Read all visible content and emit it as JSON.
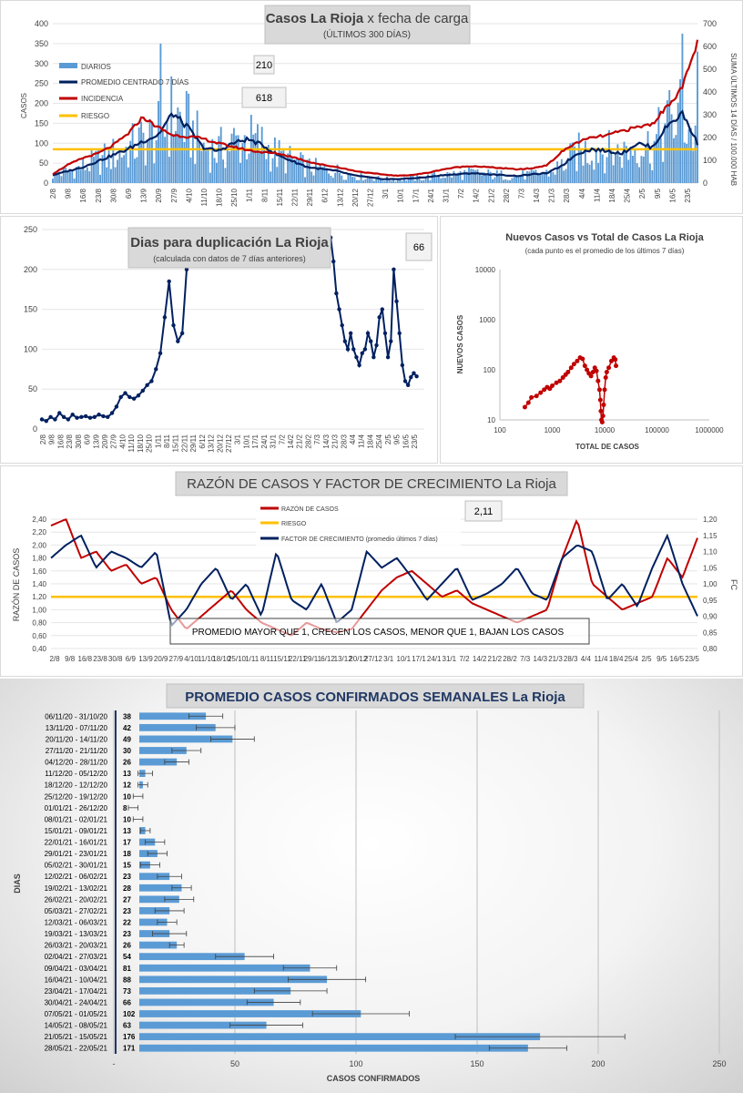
{
  "chart_data": [
    {
      "id": "casos",
      "type": "bar+line",
      "title_bold": "Casos La Rioja",
      "title_rest": "x fecha de carga",
      "subtitle": "(ÚLTIMOS 300 DÍAS)",
      "ylabel": "CASOS",
      "y2label": "SUMA ÚLTIMOS 14 DÍAS / 100.000 HAB",
      "ylim": [
        0,
        400
      ],
      "y2lim": [
        0,
        700
      ],
      "yticks": [
        "0",
        "50",
        "100",
        "150",
        "200",
        "250",
        "300",
        "350",
        "400"
      ],
      "y2ticks": [
        "0",
        "100",
        "200",
        "300",
        "400",
        "500",
        "600",
        "700"
      ],
      "xticks": [
        "2/8",
        "9/8",
        "16/8",
        "23/8",
        "30/8",
        "6/9",
        "13/9",
        "20/9",
        "27/9",
        "4/10",
        "11/10",
        "18/10",
        "25/10",
        "1/11",
        "8/11",
        "15/11",
        "22/11",
        "29/11",
        "6/12",
        "13/12",
        "20/12",
        "27/12",
        "3/1",
        "10/1",
        "17/1",
        "24/1",
        "31/1",
        "7/2",
        "14/2",
        "21/2",
        "28/2",
        "7/3",
        "14/3",
        "21/3",
        "28/3",
        "4/4",
        "11/4",
        "18/4",
        "25/4",
        "2/5",
        "9/5",
        "16/5",
        "23/5"
      ],
      "legend": [
        "DIARIOS",
        "PROMEDIO CENTRADO 7 DÍAS",
        "INCIDENCIA",
        "RIESGO"
      ],
      "annotation_diarios": "210",
      "annotation_incidencia": "618",
      "riesgo": 85,
      "colors": {
        "diarios": "#5b9bd5",
        "promedio": "#002060",
        "incidencia": "#c00000",
        "riesgo": "#ffc000"
      },
      "promedio_weekly": [
        20,
        30,
        40,
        55,
        70,
        85,
        105,
        120,
        175,
        140,
        90,
        80,
        100,
        110,
        95,
        70,
        55,
        40,
        35,
        30,
        20,
        15,
        10,
        10,
        12,
        15,
        20,
        22,
        25,
        22,
        20,
        18,
        22,
        25,
        45,
        75,
        85,
        80,
        75,
        100,
        90,
        145,
        175,
        100
      ],
      "incidencia_weekly": [
        40,
        80,
        110,
        130,
        165,
        215,
        290,
        245,
        210,
        205,
        195,
        175,
        160,
        145,
        135,
        130,
        115,
        95,
        80,
        70,
        55,
        45,
        38,
        32,
        36,
        45,
        60,
        70,
        75,
        70,
        65,
        60,
        65,
        80,
        140,
        180,
        200,
        210,
        230,
        245,
        260,
        340,
        420,
        618
      ],
      "diarios_peaks": [
        {
          "x": "20/9",
          "y": 350
        },
        {
          "x": "16/5",
          "y": 375
        },
        {
          "x": "23/5",
          "y": 330
        }
      ]
    },
    {
      "id": "duplicacion",
      "type": "line",
      "title": "Dias para duplicación La Rioja",
      "subtitle": "(calculada con datos de 7 días anteriores)",
      "annotation": "66",
      "ylim": [
        0,
        250
      ],
      "yticks": [
        "0",
        "50",
        "100",
        "150",
        "200",
        "250"
      ],
      "xticks": [
        "2/8",
        "9/8",
        "16/8",
        "23/8",
        "30/8",
        "6/9",
        "13/9",
        "20/9",
        "27/9",
        "4/10",
        "11/10",
        "18/10",
        "25/10",
        "1/11",
        "8/11",
        "15/11",
        "22/11",
        "29/11",
        "6/12",
        "13/12",
        "20/12",
        "27/12",
        "3/1",
        "10/1",
        "17/1",
        "24/1",
        "31/1",
        "7/2",
        "14/2",
        "21/2",
        "28/2",
        "7/3",
        "14/3",
        "21/3",
        "28/3",
        "4/4",
        "11/4",
        "18/4",
        "25/4",
        "2/5",
        "9/5",
        "16/5",
        "23/5"
      ],
      "color": "#002060",
      "segments": [
        [
          12,
          10,
          15,
          12,
          20,
          15,
          12,
          18,
          14,
          15,
          16,
          14,
          15,
          18,
          16,
          15,
          20,
          28,
          40,
          45,
          40,
          38,
          42,
          48,
          55,
          60,
          75,
          95,
          140,
          185,
          130,
          110,
          120,
          200,
          250
        ],
        [
          240,
          210,
          170,
          150,
          130,
          110,
          100,
          120,
          100,
          90,
          80,
          95,
          100,
          120,
          110,
          90,
          105,
          140,
          150,
          120,
          90,
          110,
          200,
          160,
          120,
          80,
          60,
          55,
          65,
          70,
          66
        ]
      ]
    },
    {
      "id": "nuevos_vs_total",
      "type": "scatter",
      "title": "Nuevos Casos vs Total de Casos La Rioja",
      "subtitle": "(cada punto es el promedio de los últimos 7 días)",
      "xlabel": "TOTAL DE CASOS",
      "ylabel": "NUEVOS CASOS",
      "x_scale": "log",
      "y_scale": "log",
      "xticks": [
        "100",
        "1000",
        "10000",
        "100000",
        "1000000"
      ],
      "yticks": [
        "10",
        "100",
        "1000",
        "10000"
      ],
      "color": "#c00000",
      "points": [
        [
          300,
          18
        ],
        [
          350,
          22
        ],
        [
          400,
          28
        ],
        [
          500,
          30
        ],
        [
          600,
          35
        ],
        [
          700,
          40
        ],
        [
          800,
          45
        ],
        [
          900,
          42
        ],
        [
          1000,
          48
        ],
        [
          1200,
          55
        ],
        [
          1400,
          60
        ],
        [
          1600,
          70
        ],
        [
          1800,
          80
        ],
        [
          2000,
          90
        ],
        [
          2300,
          110
        ],
        [
          2600,
          130
        ],
        [
          3000,
          150
        ],
        [
          3400,
          175
        ],
        [
          3800,
          165
        ],
        [
          4200,
          120
        ],
        [
          4600,
          100
        ],
        [
          5000,
          85
        ],
        [
          5500,
          75
        ],
        [
          6000,
          90
        ],
        [
          6500,
          110
        ],
        [
          7000,
          95
        ],
        [
          7500,
          60
        ],
        [
          8000,
          40
        ],
        [
          8300,
          25
        ],
        [
          8500,
          15
        ],
        [
          8700,
          10
        ],
        [
          9000,
          9
        ],
        [
          9300,
          12
        ],
        [
          9600,
          20
        ],
        [
          10000,
          40
        ],
        [
          10500,
          70
        ],
        [
          11000,
          90
        ],
        [
          12000,
          110
        ],
        [
          13500,
          150
        ],
        [
          15000,
          175
        ],
        [
          16000,
          160
        ],
        [
          16500,
          120
        ]
      ]
    },
    {
      "id": "razon",
      "type": "line",
      "title": "RAZÓN DE CASOS Y FACTOR DE CRECIMIENTO La Rioja",
      "annotation": "2,11",
      "ylabel": "RAZÓN DE CASOS",
      "y2label": "FC",
      "ylim": [
        0.4,
        2.4
      ],
      "y2lim": [
        0.8,
        1.2
      ],
      "yticks": [
        "0,40",
        "0,60",
        "0,80",
        "1,00",
        "1,20",
        "1,40",
        "1,60",
        "1,80",
        "2,00",
        "2,20",
        "2,40"
      ],
      "y2ticks": [
        "0,80",
        "0,85",
        "0,90",
        "0,95",
        "1,00",
        "1,05",
        "1,10",
        "1,15",
        "1,20"
      ],
      "legend": [
        "RAZÓN DE CASOS",
        "RIESGO",
        "FACTOR DE CRECIMIENTO (promedio últimos 7 días)"
      ],
      "note": "PROMEDIO MAYOR QUE 1, CRECEN LOS CASOS, MENOR QUE 1, BAJAN LOS CASOS",
      "xticks": [
        "2/8",
        "9/8",
        "16/8",
        "23/8",
        "30/8",
        "6/9",
        "13/9",
        "20/9",
        "27/9",
        "4/10",
        "11/10",
        "18/10",
        "25/10",
        "1/11",
        "8/11",
        "15/11",
        "22/11",
        "29/11",
        "6/12",
        "13/12",
        "20/12",
        "27/12",
        "3/1",
        "10/1",
        "17/1",
        "24/1",
        "31/1",
        "7/2",
        "14/2",
        "21/2",
        "28/2",
        "7/3",
        "14/3",
        "21/3",
        "28/3",
        "4/4",
        "11/4",
        "18/4",
        "25/4",
        "2/5",
        "9/5",
        "16/5",
        "23/5"
      ],
      "riesgo": 1.2,
      "colors": {
        "razon": "#c00000",
        "riesgo": "#ffc000",
        "fc": "#002060"
      },
      "razon_weekly": [
        2.3,
        2.4,
        1.8,
        1.9,
        1.6,
        1.7,
        1.4,
        1.5,
        1.0,
        0.7,
        0.9,
        1.1,
        1.3,
        1.0,
        0.8,
        0.7,
        0.6,
        0.8,
        0.7,
        0.65,
        0.7,
        1.0,
        1.3,
        1.5,
        1.6,
        1.4,
        1.2,
        1.3,
        1.1,
        1.0,
        0.9,
        0.8,
        0.9,
        1.0,
        1.8,
        2.4,
        1.4,
        1.2,
        1.0,
        1.1,
        1.2,
        1.8,
        1.5,
        2.11
      ],
      "fc_weekly": [
        1.08,
        1.12,
        1.15,
        1.05,
        1.1,
        1.08,
        1.05,
        1.1,
        0.87,
        0.92,
        1.0,
        1.05,
        0.95,
        1.0,
        0.9,
        1.1,
        0.95,
        0.92,
        1.0,
        0.88,
        0.92,
        1.1,
        1.05,
        1.08,
        1.02,
        0.95,
        1.0,
        1.05,
        0.95,
        0.97,
        1.0,
        1.05,
        0.97,
        0.95,
        1.08,
        1.12,
        1.1,
        0.95,
        1.0,
        0.93,
        1.05,
        1.15,
        1.0,
        0.9
      ]
    },
    {
      "id": "promedio_semanal",
      "type": "bar",
      "orientation": "horizontal",
      "title": "PROMEDIO CASOS CONFIRMADOS SEMANALES La Rioja",
      "xlabel": "CASOS CONFIRMADOS",
      "ylabel": "DIAS",
      "xlim": [
        0,
        250
      ],
      "xticks": [
        "-",
        "50",
        "100",
        "150",
        "200",
        "250"
      ],
      "color": "#5b9bd5",
      "categories": [
        "06/11/20 - 31/10/20",
        "13/11/20 - 07/11/20",
        "20/11/20 - 14/11/20",
        "27/11/20 - 21/11/20",
        "04/12/20 - 28/11/20",
        "11/12/20 - 05/12/20",
        "18/12/20 - 12/12/20",
        "25/12/20 - 19/12/20",
        "01/01/21 - 26/12/20",
        "08/01/21 - 02/01/21",
        "15/01/21 - 09/01/21",
        "22/01/21 - 16/01/21",
        "29/01/21 - 23/01/21",
        "05/02/21 - 30/01/21",
        "12/02/21 - 06/02/21",
        "19/02/21 - 13/02/21",
        "26/02/21 - 20/02/21",
        "05/03/21 - 27/02/21",
        "12/03/21 - 06/03/21",
        "19/03/21 - 13/03/21",
        "26/03/21 - 20/03/21",
        "02/04/21 - 27/03/21",
        "09/04/21 - 03/04/21",
        "16/04/21 - 10/04/21",
        "23/04/21 - 17/04/21",
        "30/04/21 - 24/04/21",
        "07/05/21 - 01/05/21",
        "14/05/21 - 08/05/21",
        "21/05/21 - 15/05/21",
        "28/05/21 - 22/05/21"
      ],
      "values": [
        38,
        42,
        49,
        30,
        26,
        13,
        12,
        10,
        8,
        10,
        13,
        17,
        18,
        15,
        23,
        28,
        27,
        23,
        22,
        23,
        26,
        54,
        81,
        88,
        73,
        66,
        102,
        63,
        176,
        171
      ],
      "errors": [
        7,
        8,
        9,
        6,
        5,
        3,
        2,
        2,
        2,
        2,
        2,
        4,
        4,
        4,
        5,
        4,
        6,
        6,
        4,
        7,
        3,
        12,
        11,
        16,
        15,
        11,
        20,
        15,
        35,
        16
      ]
    }
  ]
}
